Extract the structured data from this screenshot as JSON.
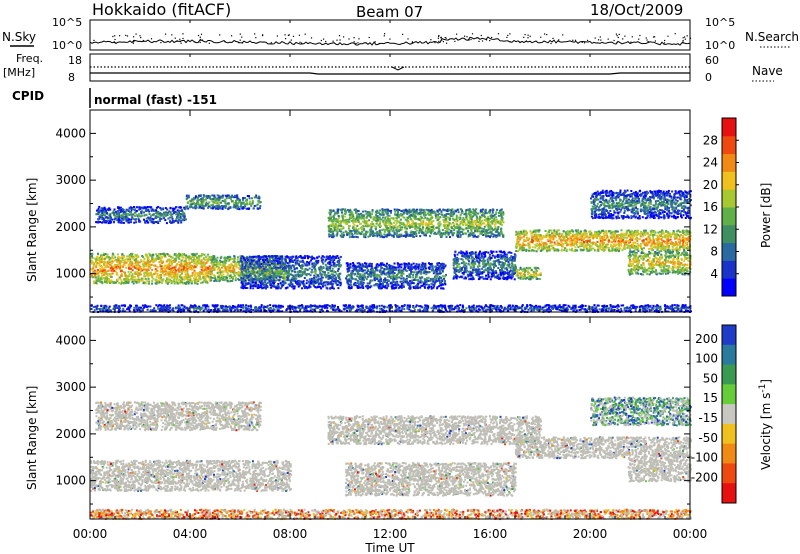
{
  "header": {
    "station": "Hokkaido (fitACF)",
    "beam": "Beam 07",
    "date": "18/Oct/2009"
  },
  "top_panels": {
    "nsky_label": "N.Sky",
    "nsearch_label": "N.Search",
    "count_ticks": [
      "10^5",
      "10^0"
    ],
    "freq_label_1": "Freq.",
    "freq_label_2": "[MHz]",
    "freq_ticks": [
      "18",
      "8"
    ],
    "nave_label": "Nave",
    "nave_ticks": [
      "60",
      "0"
    ],
    "cpid_label": "CPID",
    "cpid_value": "normal (fast) -151"
  },
  "chart_data": [
    {
      "type": "heatmap",
      "name": "Power",
      "ylabel": "Slant Range [km]",
      "xlabel": "Time UT",
      "x_ticks": [
        "00:00",
        "04:00",
        "08:00",
        "12:00",
        "16:00",
        "20:00",
        "00:00"
      ],
      "xlim_hours": [
        0,
        24
      ],
      "y_ticks": [
        1000,
        2000,
        3000,
        4000
      ],
      "ylim": [
        180,
        4500
      ],
      "colorbar_label": "Power [dB]",
      "colorbar_ticks": [
        4,
        8,
        12,
        16,
        20,
        24,
        28
      ],
      "colorbar_range": [
        0,
        32
      ],
      "colors": [
        "#0000ff",
        "#1a33c8",
        "#2a6aa0",
        "#3f8f62",
        "#60b04a",
        "#a8c832",
        "#f0c01e",
        "#f08a14",
        "#ee4a10",
        "#e61010"
      ],
      "echo_regions": [
        {
          "t": [
            0.0,
            4.8
          ],
          "r": [
            800,
            1450
          ],
          "level": 24
        },
        {
          "t": [
            4.8,
            7.8
          ],
          "r": [
            850,
            1400
          ],
          "level": 20
        },
        {
          "t": [
            0.2,
            3.8
          ],
          "r": [
            2100,
            2450
          ],
          "level": 12
        },
        {
          "t": [
            3.8,
            6.8
          ],
          "r": [
            2400,
            2700
          ],
          "level": 14
        },
        {
          "t": [
            6.0,
            10.0
          ],
          "r": [
            700,
            1400
          ],
          "level": 12
        },
        {
          "t": [
            9.5,
            16.5
          ],
          "r": [
            1800,
            2400
          ],
          "level": 16
        },
        {
          "t": [
            10.2,
            14.2
          ],
          "r": [
            700,
            1250
          ],
          "level": 10
        },
        {
          "t": [
            14.5,
            17.0
          ],
          "r": [
            900,
            1500
          ],
          "level": 12
        },
        {
          "t": [
            17.0,
            18.0
          ],
          "r": [
            900,
            1150
          ],
          "level": 22
        },
        {
          "t": [
            17.0,
            24.0
          ],
          "r": [
            1500,
            1950
          ],
          "level": 24
        },
        {
          "t": [
            21.5,
            24.0
          ],
          "r": [
            1000,
            1500
          ],
          "level": 22
        },
        {
          "t": [
            20.0,
            24.0
          ],
          "r": [
            2200,
            2800
          ],
          "level": 10
        },
        {
          "t": [
            0.0,
            24.0
          ],
          "r": [
            200,
            350
          ],
          "level": 8
        }
      ]
    },
    {
      "type": "heatmap",
      "name": "Velocity",
      "ylabel": "Slant Range [km]",
      "xlabel": "Time UT",
      "x_ticks": [
        "00:00",
        "04:00",
        "08:00",
        "12:00",
        "16:00",
        "20:00",
        "00:00"
      ],
      "xlim_hours": [
        0,
        24
      ],
      "y_ticks": [
        1000,
        2000,
        3000,
        4000
      ],
      "ylim": [
        180,
        4500
      ],
      "colorbar_label": "Velocity [m s^-1]",
      "colorbar_ticks": [
        200,
        100,
        50,
        15,
        -15,
        -50,
        -100,
        -200
      ],
      "colors": [
        "#1f3cc8",
        "#2a7a9e",
        "#3a9a52",
        "#66cc3a",
        "#c8c8c0",
        "#f0c01e",
        "#f08a14",
        "#ee4a10",
        "#e61010"
      ],
      "ground_scatter_color": "#bebeb6",
      "echo_regions": [
        {
          "t": [
            0.0,
            8.0
          ],
          "r": [
            800,
            1450
          ],
          "level": 0
        },
        {
          "t": [
            0.2,
            6.8
          ],
          "r": [
            2100,
            2700
          ],
          "level": 0
        },
        {
          "t": [
            9.5,
            18.0
          ],
          "r": [
            1800,
            2400
          ],
          "level": 0
        },
        {
          "t": [
            10.2,
            17.0
          ],
          "r": [
            700,
            1400
          ],
          "level": 0
        },
        {
          "t": [
            17.0,
            24.0
          ],
          "r": [
            1500,
            1950
          ],
          "level": 0
        },
        {
          "t": [
            21.5,
            24.0
          ],
          "r": [
            1000,
            1500
          ],
          "level": 0
        },
        {
          "t": [
            20.0,
            24.0
          ],
          "r": [
            2200,
            2800
          ],
          "level": 30
        },
        {
          "t": [
            0.0,
            24.0
          ],
          "r": [
            200,
            400
          ],
          "level": -30
        }
      ]
    }
  ]
}
